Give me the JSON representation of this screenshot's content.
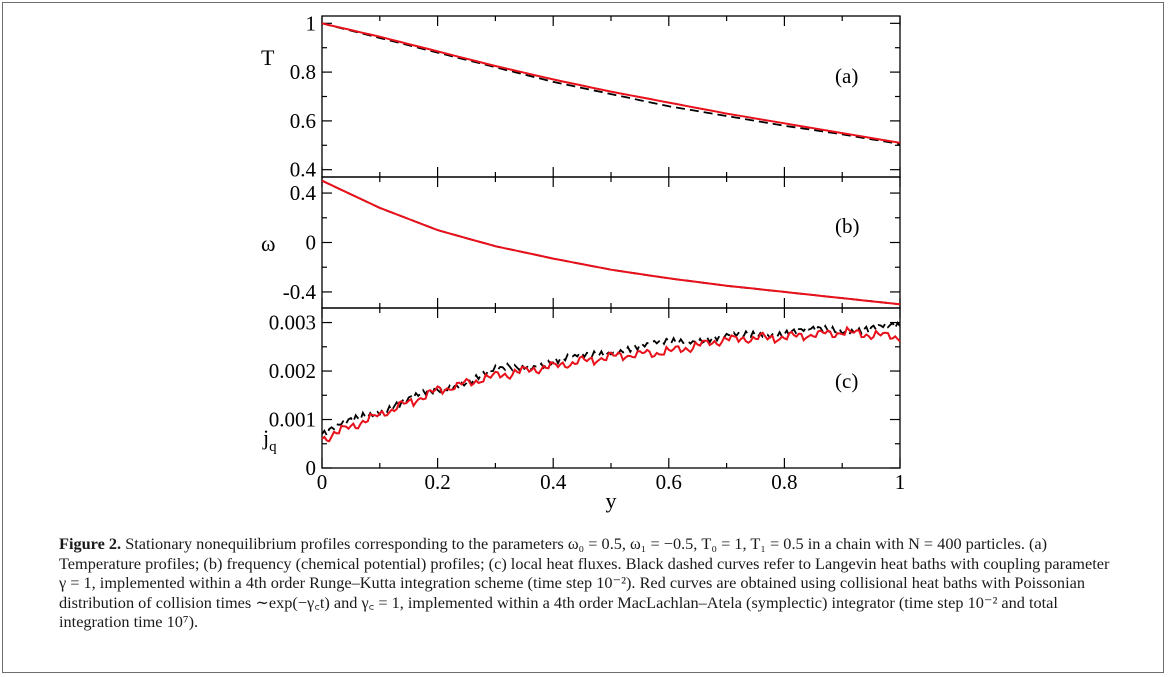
{
  "figure": {
    "x_label": "y",
    "x_ticks": [
      "0",
      "0.2",
      "0.4",
      "0.6",
      "0.8",
      "1"
    ],
    "panels": [
      {
        "panel_label": "(a)",
        "y_label": "T",
        "y_ticks": [
          {
            "value": 1,
            "label": "1"
          },
          {
            "value": 0.8,
            "label": "0.8"
          },
          {
            "value": 0.6,
            "label": "0.6"
          },
          {
            "value": 0.4,
            "label": "0.4"
          }
        ]
      },
      {
        "panel_label": "(b)",
        "y_label": "ω",
        "y_ticks": [
          {
            "value": 0.4,
            "label": "0.4"
          },
          {
            "value": 0,
            "label": "0"
          },
          {
            "value": -0.4,
            "label": "-0.4"
          }
        ]
      },
      {
        "panel_label": "(c)",
        "y_label": "j",
        "y_label_sub": "q",
        "y_ticks": [
          {
            "value": 0.003,
            "label": "0.003"
          },
          {
            "value": 0.002,
            "label": "0.002"
          },
          {
            "value": 0.001,
            "label": "0.001"
          },
          {
            "value": 0,
            "label": "0"
          }
        ]
      }
    ]
  },
  "chart_data": [
    {
      "type": "line",
      "xlabel": "y",
      "ylabel": "T",
      "xlim": [
        0,
        1
      ],
      "ylim": [
        0.37,
        1.03
      ],
      "annotation": "(a)",
      "x": [
        0,
        0.1,
        0.2,
        0.3,
        0.4,
        0.5,
        0.6,
        0.7,
        0.8,
        0.9,
        1.0
      ],
      "series": [
        {
          "style": "black-dashed",
          "color": "#000000",
          "values": [
            1.0,
            0.94,
            0.88,
            0.82,
            0.76,
            0.71,
            0.66,
            0.62,
            0.58,
            0.545,
            0.505
          ]
        },
        {
          "style": "red-solid",
          "color": "#e8101a",
          "values": [
            1.0,
            0.945,
            0.885,
            0.825,
            0.77,
            0.72,
            0.675,
            0.63,
            0.59,
            0.55,
            0.51
          ]
        }
      ]
    },
    {
      "type": "line",
      "xlabel": "y",
      "ylabel": "ω",
      "xlim": [
        0,
        1
      ],
      "ylim": [
        -0.53,
        0.53
      ],
      "annotation": "(b)",
      "x": [
        0,
        0.1,
        0.2,
        0.3,
        0.4,
        0.5,
        0.6,
        0.7,
        0.8,
        0.9,
        1.0
      ],
      "series": [
        {
          "style": "black-dashed",
          "color": "#000000",
          "values": [
            0.5,
            0.28,
            0.1,
            -0.03,
            -0.13,
            -0.22,
            -0.29,
            -0.35,
            -0.4,
            -0.45,
            -0.5
          ]
        },
        {
          "style": "red-solid",
          "color": "#e8101a",
          "values": [
            0.5,
            0.28,
            0.1,
            -0.03,
            -0.13,
            -0.22,
            -0.29,
            -0.35,
            -0.4,
            -0.45,
            -0.5
          ]
        }
      ]
    },
    {
      "type": "line",
      "xlabel": "y",
      "ylabel": "jq",
      "xlim": [
        0,
        1
      ],
      "ylim": [
        0,
        0.0033
      ],
      "annotation": "(c)",
      "x": [
        0,
        0.1,
        0.2,
        0.3,
        0.4,
        0.5,
        0.6,
        0.7,
        0.8,
        0.9,
        1.0
      ],
      "series": [
        {
          "style": "black-dashed",
          "color": "#000000",
          "values": [
            0.0007,
            0.0012,
            0.0016,
            0.002,
            0.0022,
            0.0024,
            0.0026,
            0.0027,
            0.0028,
            0.00285,
            0.0029
          ]
        },
        {
          "style": "red-solid",
          "color": "#e8101a",
          "values": [
            0.0006,
            0.0011,
            0.0016,
            0.0019,
            0.0021,
            0.0023,
            0.0024,
            0.00265,
            0.0027,
            0.0028,
            0.0027
          ]
        }
      ]
    }
  ],
  "caption": {
    "label": "Figure 2.",
    "text": "Stationary nonequilibrium profiles corresponding to the parameters ω₀ = 0.5, ω₁ = −0.5, T₀ = 1, T₁ = 0.5 in a chain with N = 400 particles. (a) Temperature profiles; (b) frequency (chemical potential) profiles; (c) local heat fluxes. Black dashed curves refer to Langevin heat baths with coupling parameter γ = 1, implemented within a 4th order Runge–Kutta integration scheme (time step 10⁻²). Red curves are obtained using collisional heat baths with Poissonian distribution of collision times ∼exp(−γ꜀t) and γ꜀ = 1, implemented within a 4th order MacLachlan–Atela (symplectic) integrator (time step 10⁻² and total integration time 10⁷)."
  }
}
